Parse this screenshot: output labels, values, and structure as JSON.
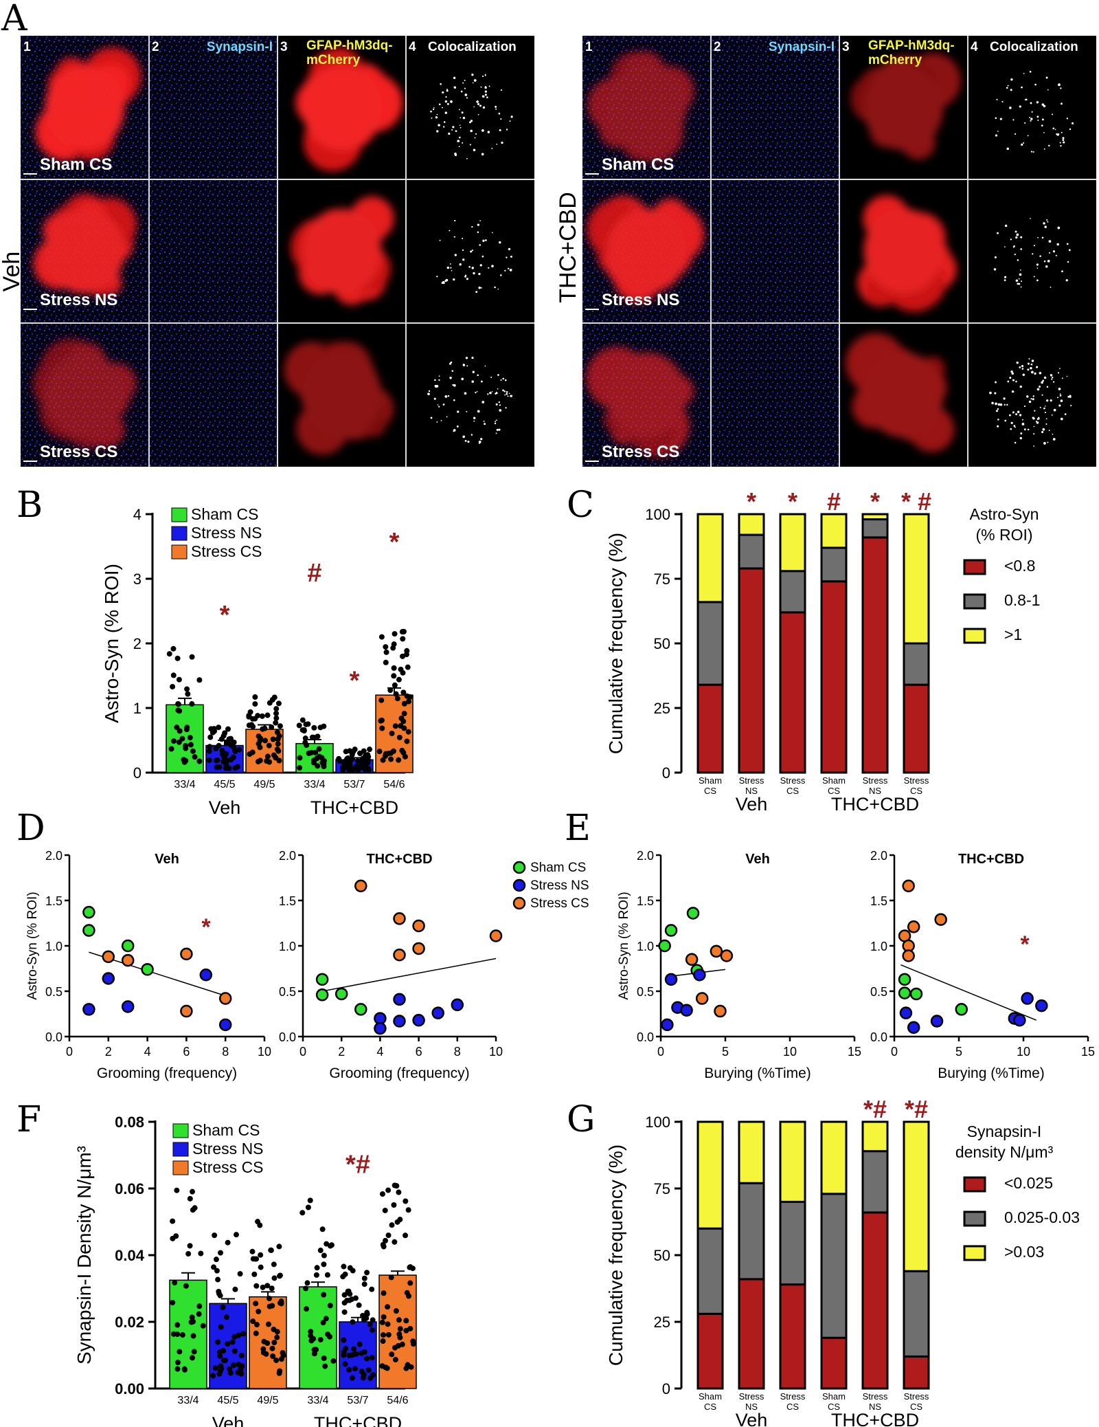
{
  "colors": {
    "green": "#2fe02f",
    "blue": "#1a1ae6",
    "orange": "#f07a2a",
    "dark_red": "#b01c1c",
    "gray": "#6f6f6f",
    "yellow": "#f5f53c",
    "marker": "#9b1b1b"
  },
  "panel_a": {
    "letter": "A",
    "left_group": "Veh",
    "right_group": "THC+CBD",
    "col_numbers": [
      "1",
      "2",
      "3",
      "4"
    ],
    "col_synapsin": "Synapsin-I",
    "col_gfap_line1": "GFAP-hM3dq-",
    "col_gfap_line2": "mCherry",
    "col_coloc": "Colocalization",
    "row_labels": [
      "Sham CS",
      "Stress NS",
      "Stress CS"
    ]
  },
  "panel_b": {
    "letter": "B",
    "chart_data": {
      "type": "bar",
      "ylabel": "Astro-Syn (% ROI)",
      "ylim": [
        0,
        4
      ],
      "yticks": [
        "0",
        "1",
        "2",
        "3",
        "4"
      ],
      "series_names": [
        "Sham CS",
        "Stress NS",
        "Stress CS"
      ],
      "groups": [
        "Veh",
        "THC+CBD"
      ],
      "bars": [
        {
          "group": "Veh",
          "series": "Sham CS",
          "n_label": "33/4",
          "value": 1.05,
          "sem": 0.1,
          "mark": ""
        },
        {
          "group": "Veh",
          "series": "Stress NS",
          "n_label": "45/5",
          "value": 0.42,
          "sem": 0.08,
          "mark": "*"
        },
        {
          "group": "Veh",
          "series": "Stress CS",
          "n_label": "49/5",
          "value": 0.67,
          "sem": 0.07,
          "mark": ""
        },
        {
          "group": "THC+CBD",
          "series": "Sham CS",
          "n_label": "33/4",
          "value": 0.45,
          "sem": 0.06,
          "mark": "#"
        },
        {
          "group": "THC+CBD",
          "series": "Stress NS",
          "n_label": "53/7",
          "value": 0.2,
          "sem": 0.03,
          "mark": "*"
        },
        {
          "group": "THC+CBD",
          "series": "Stress CS",
          "n_label": "54/6",
          "value": 1.2,
          "sem": 0.11,
          "mark": "*"
        }
      ]
    }
  },
  "panel_c": {
    "letter": "C",
    "chart_data": {
      "type": "bar",
      "stacked": true,
      "ylabel": "Cumulative frequency (%)",
      "ylim": [
        0,
        100
      ],
      "yticks": [
        "0",
        "25",
        "50",
        "75",
        "100"
      ],
      "legend_title_line1": "Astro-Syn",
      "legend_title_line2": "(% ROI)",
      "categories": [
        [
          "Sham",
          "CS"
        ],
        [
          "Stress",
          "NS"
        ],
        [
          "Stress",
          "CS"
        ],
        [
          "Sham",
          "CS"
        ],
        [
          "Stress",
          "NS"
        ],
        [
          "Stress",
          "CS"
        ]
      ],
      "groups": [
        "Veh",
        "THC+CBD"
      ],
      "marks": [
        "",
        "*",
        "*",
        "#",
        "*",
        "* #"
      ],
      "series": [
        {
          "name": "<0.8",
          "values": [
            34,
            79,
            62,
            74,
            91,
            34
          ]
        },
        {
          "name": "0.8-1",
          "values": [
            32,
            13,
            16,
            13,
            7,
            16
          ]
        },
        {
          "name": ">1",
          "values": [
            34,
            8,
            22,
            13,
            2,
            50
          ]
        }
      ]
    }
  },
  "panel_d": {
    "letter": "D",
    "xlabel": "Grooming (frequency)",
    "ylabel": "Astro-Syn (% ROI)",
    "legend": [
      "Sham CS",
      "Stress NS",
      "Stress CS"
    ],
    "chart_data": [
      {
        "type": "scatter",
        "title": "Veh",
        "xlim": [
          0,
          10
        ],
        "ylim": [
          0,
          2
        ],
        "xticks": [
          "0",
          "2",
          "4",
          "6",
          "8",
          "10"
        ],
        "yticks": [
          "0.0",
          "0.5",
          "1.0",
          "1.5",
          "2.0"
        ],
        "mark": "*",
        "trend": [
          [
            1,
            0.93
          ],
          [
            8,
            0.45
          ]
        ],
        "points": {
          "Sham CS": [
            [
              1,
              1.37
            ],
            [
              1,
              1.17
            ],
            [
              3,
              1.0
            ],
            [
              4,
              0.74
            ]
          ],
          "Stress NS": [
            [
              1,
              0.3
            ],
            [
              2,
              0.64
            ],
            [
              3,
              0.33
            ],
            [
              7,
              0.68
            ],
            [
              8,
              0.13
            ]
          ],
          "Stress CS": [
            [
              2,
              0.88
            ],
            [
              3,
              0.84
            ],
            [
              6,
              0.91
            ],
            [
              6,
              0.28
            ],
            [
              8,
              0.42
            ]
          ]
        }
      },
      {
        "type": "scatter",
        "title": "THC+CBD",
        "xlim": [
          0,
          10
        ],
        "ylim": [
          0,
          2
        ],
        "xticks": [
          "0",
          "2",
          "4",
          "6",
          "8",
          "10"
        ],
        "yticks": [
          "0.0",
          "0.5",
          "1.0",
          "1.5",
          "2.0"
        ],
        "mark": "",
        "trend": [
          [
            1,
            0.5
          ],
          [
            10,
            0.86
          ]
        ],
        "points": {
          "Sham CS": [
            [
              1,
              0.63
            ],
            [
              1,
              0.46
            ],
            [
              2,
              0.47
            ],
            [
              3,
              0.3
            ]
          ],
          "Stress NS": [
            [
              4,
              0.2
            ],
            [
              4,
              0.09
            ],
            [
              5,
              0.41
            ],
            [
              5,
              0.17
            ],
            [
              6,
              0.18
            ],
            [
              7,
              0.26
            ],
            [
              8,
              0.35
            ]
          ],
          "Stress CS": [
            [
              3,
              1.66
            ],
            [
              5,
              1.3
            ],
            [
              5,
              0.9
            ],
            [
              6,
              1.22
            ],
            [
              6,
              0.97
            ],
            [
              10,
              1.11
            ]
          ]
        }
      }
    ]
  },
  "panel_e": {
    "letter": "E",
    "xlabel": "Burying (%Time)",
    "ylabel": "Astro-Syn (% ROI)",
    "chart_data": [
      {
        "type": "scatter",
        "title": "Veh",
        "xlim": [
          0,
          15
        ],
        "ylim": [
          0,
          2
        ],
        "xticks": [
          "0",
          "5",
          "10",
          "15"
        ],
        "yticks": [
          "0.0",
          "0.5",
          "1.0",
          "1.5",
          "2.0"
        ],
        "mark": "",
        "trend": [
          [
            0.5,
            0.66
          ],
          [
            5,
            0.74
          ]
        ],
        "points": {
          "Sham CS": [
            [
              0.3,
              1.0
            ],
            [
              0.8,
              1.17
            ],
            [
              2.5,
              1.36
            ],
            [
              2.8,
              0.73
            ]
          ],
          "Stress NS": [
            [
              0.5,
              0.13
            ],
            [
              0.8,
              0.63
            ],
            [
              1.3,
              0.32
            ],
            [
              2.0,
              0.29
            ],
            [
              3.0,
              0.68
            ]
          ],
          "Stress CS": [
            [
              2.4,
              0.85
            ],
            [
              3.2,
              0.42
            ],
            [
              4.3,
              0.94
            ],
            [
              4.6,
              0.28
            ],
            [
              5.1,
              0.89
            ]
          ]
        }
      },
      {
        "type": "scatter",
        "title": "THC+CBD",
        "xlim": [
          0,
          15
        ],
        "ylim": [
          0,
          2
        ],
        "xticks": [
          "0",
          "5",
          "10",
          "15"
        ],
        "yticks": [
          "0.0",
          "0.5",
          "1.0",
          "1.5",
          "2.0"
        ],
        "mark": "*",
        "trend": [
          [
            0.5,
            0.79
          ],
          [
            11,
            0.18
          ]
        ],
        "points": {
          "Sham CS": [
            [
              0.8,
              0.63
            ],
            [
              0.8,
              0.48
            ],
            [
              1.7,
              0.47
            ],
            [
              5.2,
              0.3
            ]
          ],
          "Stress NS": [
            [
              0.9,
              0.26
            ],
            [
              1.5,
              0.1
            ],
            [
              3.3,
              0.17
            ],
            [
              9.3,
              0.2
            ],
            [
              9.7,
              0.18
            ],
            [
              10.3,
              0.42
            ],
            [
              11.4,
              0.34
            ]
          ],
          "Stress CS": [
            [
              0.8,
              1.11
            ],
            [
              1.1,
              1.0
            ],
            [
              1.1,
              0.89
            ],
            [
              1.5,
              1.21
            ],
            [
              1.1,
              1.66
            ],
            [
              3.6,
              1.29
            ]
          ]
        }
      }
    ]
  },
  "panel_f": {
    "letter": "F",
    "chart_data": {
      "type": "bar",
      "ylabel": "Synapsin-I Density N/μm³",
      "ylim": [
        0,
        0.08
      ],
      "yticks": [
        "0.00",
        "0.02",
        "0.04",
        "0.06",
        "0.08"
      ],
      "series_names": [
        "Sham CS",
        "Stress NS",
        "Stress CS"
      ],
      "groups": [
        "Veh",
        "THC+CBD"
      ],
      "bars": [
        {
          "group": "Veh",
          "series": "Sham CS",
          "n_label": "33/4",
          "value": 0.0325,
          "sem": 0.0022,
          "mark": ""
        },
        {
          "group": "Veh",
          "series": "Stress NS",
          "n_label": "45/5",
          "value": 0.0255,
          "sem": 0.0014,
          "mark": ""
        },
        {
          "group": "Veh",
          "series": "Stress CS",
          "n_label": "49/5",
          "value": 0.0275,
          "sem": 0.0015,
          "mark": ""
        },
        {
          "group": "THC+CBD",
          "series": "Sham CS",
          "n_label": "33/4",
          "value": 0.0305,
          "sem": 0.0014,
          "mark": ""
        },
        {
          "group": "THC+CBD",
          "series": "Stress NS",
          "n_label": "53/7",
          "value": 0.02,
          "sem": 0.0013,
          "mark": "*#"
        },
        {
          "group": "THC+CBD",
          "series": "Stress CS",
          "n_label": "54/6",
          "value": 0.034,
          "sem": 0.0012,
          "mark": ""
        }
      ]
    }
  },
  "panel_g": {
    "letter": "G",
    "chart_data": {
      "type": "bar",
      "stacked": true,
      "ylabel": "Cumulative frequency (%)",
      "ylim": [
        0,
        100
      ],
      "yticks": [
        "0",
        "25",
        "50",
        "75",
        "100"
      ],
      "legend_title_line1": "Synapsin-I",
      "legend_title_line2": "density N/μm³",
      "categories": [
        [
          "Sham",
          "CS"
        ],
        [
          "Stress",
          "NS"
        ],
        [
          "Stress",
          "CS"
        ],
        [
          "Sham",
          "CS"
        ],
        [
          "Stress",
          "NS"
        ],
        [
          "Stress",
          "CS"
        ]
      ],
      "groups": [
        "Veh",
        "THC+CBD"
      ],
      "marks": [
        "",
        "",
        "",
        "",
        "*#",
        "*#"
      ],
      "series": [
        {
          "name": "<0.025",
          "values": [
            28,
            41,
            39,
            19,
            66,
            12
          ]
        },
        {
          "name": "0.025-0.03",
          "values": [
            32,
            36,
            31,
            54,
            23,
            32
          ]
        },
        {
          "name": ">0.03",
          "values": [
            40,
            23,
            30,
            27,
            11,
            56
          ]
        }
      ]
    }
  }
}
